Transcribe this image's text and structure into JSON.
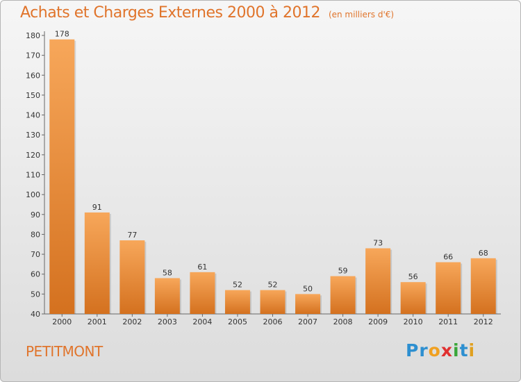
{
  "title": "Achats et Charges Externes 2000 à 2012",
  "subtitle": "(en milliers d'€)",
  "commune": "PETITMONT",
  "logo": {
    "letters": [
      "P",
      "r",
      "o",
      "x",
      "i",
      "t",
      "i"
    ],
    "colors": [
      "#2d8fd0",
      "#2d8fd0",
      "#f0a020",
      "#e03030",
      "#3aa63a",
      "#2d8fd0",
      "#e0a020"
    ]
  },
  "colors": {
    "bar_light": "#f7a75a",
    "bar_dark": "#d4711f",
    "accent": "#e0742b"
  },
  "chart_data": {
    "type": "bar",
    "categories": [
      "2000",
      "2001",
      "2002",
      "2003",
      "2004",
      "2005",
      "2006",
      "2007",
      "2008",
      "2009",
      "2010",
      "2011",
      "2012"
    ],
    "values": [
      178,
      91,
      77,
      58,
      61,
      52,
      52,
      50,
      59,
      73,
      56,
      66,
      68
    ],
    "ylim": [
      40,
      180
    ],
    "yticks": [
      40,
      50,
      60,
      70,
      80,
      90,
      100,
      110,
      120,
      130,
      140,
      150,
      160,
      170,
      180
    ],
    "grid": false,
    "xlabel": "",
    "ylabel": ""
  }
}
